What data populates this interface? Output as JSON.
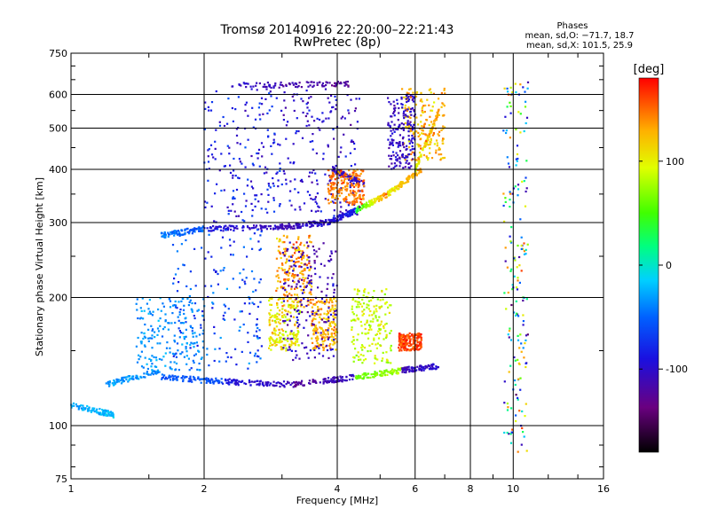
{
  "chart_data": {
    "type": "scatter",
    "title": "Tromsø 20140916 22:20:00–22:21:43",
    "subtitle": "RwPretec (8p)",
    "xlabel": "Frequency [MHz]",
    "ylabel": "Stationary phase Virtual Height [km]",
    "x_scale": "log",
    "y_scale": "log",
    "xlim": [
      1,
      16
    ],
    "ylim": [
      75,
      750
    ],
    "x_ticks": [
      "1",
      "2",
      "4",
      "6",
      "8",
      "10",
      "16"
    ],
    "y_ticks": [
      "75",
      "100",
      "200",
      "300",
      "400",
      "500",
      "600",
      "750"
    ],
    "grid": true,
    "legend": {
      "title": "Phases",
      "lines": [
        "mean, sd,O: −71.7, 18.7",
        "mean, sd,X: 101.5, 25.9"
      ],
      "placement": "top-right"
    },
    "colorbar": {
      "label": "[deg]",
      "ticks": [
        "100",
        "0",
        "-100"
      ],
      "tick_values": [
        100,
        0,
        -100
      ],
      "range": [
        -180,
        180
      ],
      "colormap": "rainbow (black-purple-blue-cyan-green-yellow-red)"
    },
    "traces": [
      {
        "f": [
          1.0,
          1.25
        ],
        "h": [
          112,
          106
        ],
        "phase": [
          -30,
          -20
        ]
      },
      {
        "f": [
          1.2,
          1.6
        ],
        "h": [
          125,
          135
        ],
        "phase": [
          -30,
          -35
        ]
      },
      {
        "f": [
          1.6,
          2.2
        ],
        "h": [
          130,
          127
        ],
        "phase": [
          -55,
          -60
        ]
      },
      {
        "f": [
          2.2,
          3.2
        ],
        "h": [
          127,
          125
        ],
        "phase": [
          -90,
          -110
        ]
      },
      {
        "f": [
          3.2,
          4.4
        ],
        "h": [
          125,
          130
        ],
        "phase": [
          -130,
          -100
        ]
      },
      {
        "f": [
          4.4,
          5.6
        ],
        "h": [
          130,
          135
        ],
        "phase": [
          60,
          80
        ]
      },
      {
        "f": [
          5.6,
          6.8
        ],
        "h": [
          135,
          138
        ],
        "phase": [
          -110,
          -100
        ]
      },
      {
        "f": [
          1.6,
          2.0
        ],
        "h": [
          280,
          290
        ],
        "phase": [
          -40,
          -60
        ]
      },
      {
        "f": [
          2.0,
          3.0
        ],
        "h": [
          290,
          293
        ],
        "phase": [
          -90,
          -110
        ]
      },
      {
        "f": [
          3.0,
          3.8
        ],
        "h": [
          293,
          300
        ],
        "phase": [
          -110,
          -100
        ]
      },
      {
        "f": [
          3.8,
          4.4
        ],
        "h": [
          300,
          320
        ],
        "phase": [
          -100,
          -80
        ]
      },
      {
        "f": [
          4.4,
          5.2
        ],
        "h": [
          320,
          350
        ],
        "phase": [
          30,
          150
        ]
      },
      {
        "f": [
          5.2,
          6.2
        ],
        "h": [
          350,
          400
        ],
        "phase": [
          100,
          140
        ]
      },
      {
        "f": [
          6.0,
          6.8
        ],
        "h": [
          400,
          550
        ],
        "phase": [
          90,
          140
        ]
      },
      {
        "f": [
          2.3,
          4.3
        ],
        "h": [
          630,
          635
        ],
        "phase": [
          -100,
          -130
        ]
      },
      {
        "f": [
          3.9,
          4.6
        ],
        "h": [
          400,
          370
        ],
        "phase": [
          -100,
          -110
        ]
      }
    ],
    "clusters": [
      {
        "f": [
          1.7,
          2.7
        ],
        "h": [
          135,
          290
        ],
        "phase": [
          -90,
          -30
        ]
      },
      {
        "f": [
          1.4,
          2.0
        ],
        "h": [
          135,
          200
        ],
        "phase": [
          -45,
          -25
        ]
      },
      {
        "f": [
          2.0,
          3.0
        ],
        "h": [
          300,
          620
        ],
        "phase": [
          -110,
          -60
        ]
      },
      {
        "f": [
          3.0,
          4.5
        ],
        "h": [
          310,
          620
        ],
        "phase": [
          -120,
          -80
        ]
      },
      {
        "f": [
          2.9,
          3.5
        ],
        "h": [
          190,
          280
        ],
        "phase": [
          110,
          160
        ]
      },
      {
        "f": [
          3.5,
          4.0
        ],
        "h": [
          150,
          200
        ],
        "phase": [
          110,
          150
        ]
      },
      {
        "f": [
          2.8,
          3.3
        ],
        "h": [
          150,
          200
        ],
        "phase": [
          80,
          130
        ]
      },
      {
        "f": [
          3.0,
          4.0
        ],
        "h": [
          140,
          270
        ],
        "phase": [
          -130,
          -90
        ]
      },
      {
        "f": [
          4.3,
          5.3
        ],
        "h": [
          140,
          210
        ],
        "phase": [
          70,
          110
        ]
      },
      {
        "f": [
          3.8,
          4.6
        ],
        "h": [
          330,
          400
        ],
        "phase": [
          130,
          160
        ]
      },
      {
        "f": [
          5.5,
          6.2
        ],
        "h": [
          150,
          165
        ],
        "phase": [
          150,
          175
        ]
      },
      {
        "f": [
          5.6,
          7.0
        ],
        "h": [
          420,
          620
        ],
        "phase": [
          100,
          150
        ]
      },
      {
        "f": [
          5.2,
          6.0
        ],
        "h": [
          400,
          600
        ],
        "phase": [
          -120,
          -90
        ]
      },
      {
        "f": [
          9.5,
          10.8
        ],
        "h": [
          85,
          650
        ],
        "phase": [
          -150,
          160
        ]
      }
    ],
    "scatter_seed": 20140916,
    "scatter_count": 2600
  }
}
